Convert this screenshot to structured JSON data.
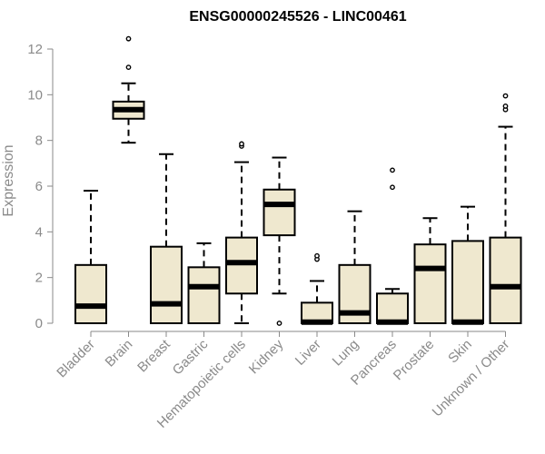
{
  "chart_data": {
    "type": "box",
    "title": "ENSG00000245526 - LINC00461",
    "ylabel": "Expression",
    "ylim": [
      0,
      12
    ],
    "yticks": [
      0,
      2,
      4,
      6,
      8,
      10,
      12
    ],
    "categories": [
      "Bladder",
      "Brain",
      "Breast",
      "Gastric",
      "Hematopoietic cells",
      "Kidney",
      "Liver",
      "Lung",
      "Pancreas",
      "Prostate",
      "Skin",
      "Unknown / Other"
    ],
    "boxes": [
      {
        "category": "Bladder",
        "q1": 0,
        "median": 0.75,
        "q3": 2.55,
        "whisker_low": 0,
        "whisker_high": 5.8,
        "outliers": []
      },
      {
        "category": "Brain",
        "q1": 8.95,
        "median": 9.35,
        "q3": 9.7,
        "whisker_low": 7.9,
        "whisker_high": 10.5,
        "outliers": [
          11.2,
          12.45
        ]
      },
      {
        "category": "Breast",
        "q1": 0,
        "median": 0.85,
        "q3": 3.35,
        "whisker_low": 0,
        "whisker_high": 7.4,
        "outliers": []
      },
      {
        "category": "Gastric",
        "q1": 0,
        "median": 1.6,
        "q3": 2.45,
        "whisker_low": 0,
        "whisker_high": 3.5,
        "outliers": []
      },
      {
        "category": "Hematopoietic cells",
        "q1": 1.3,
        "median": 2.65,
        "q3": 3.75,
        "whisker_low": 0,
        "whisker_high": 7.05,
        "outliers": [
          7.75,
          7.85
        ]
      },
      {
        "category": "Kidney",
        "q1": 3.85,
        "median": 5.2,
        "q3": 5.85,
        "whisker_low": 1.3,
        "whisker_high": 7.25,
        "outliers": [
          0
        ]
      },
      {
        "category": "Liver",
        "q1": 0,
        "median": 0.05,
        "q3": 0.9,
        "whisker_low": 0,
        "whisker_high": 1.85,
        "outliers": [
          2.8,
          2.95
        ]
      },
      {
        "category": "Lung",
        "q1": 0,
        "median": 0.45,
        "q3": 2.55,
        "whisker_low": 0,
        "whisker_high": 4.9,
        "outliers": []
      },
      {
        "category": "Pancreas",
        "q1": 0,
        "median": 0.05,
        "q3": 1.3,
        "whisker_low": 0,
        "whisker_high": 1.5,
        "outliers": [
          5.95,
          6.7
        ]
      },
      {
        "category": "Prostate",
        "q1": 0,
        "median": 2.4,
        "q3": 3.45,
        "whisker_low": 0,
        "whisker_high": 4.6,
        "outliers": []
      },
      {
        "category": "Skin",
        "q1": 0,
        "median": 0.05,
        "q3": 3.6,
        "whisker_low": 0,
        "whisker_high": 5.1,
        "outliers": []
      },
      {
        "category": "Unknown / Other",
        "q1": 0,
        "median": 1.6,
        "q3": 3.75,
        "whisker_low": 0,
        "whisker_high": 8.6,
        "outliers": [
          9.35,
          9.5,
          9.95
        ]
      }
    ],
    "box_fill": "#efe8cf",
    "box_stroke": "#000000",
    "median_color": "#000000",
    "grid": false,
    "legend": "none"
  }
}
